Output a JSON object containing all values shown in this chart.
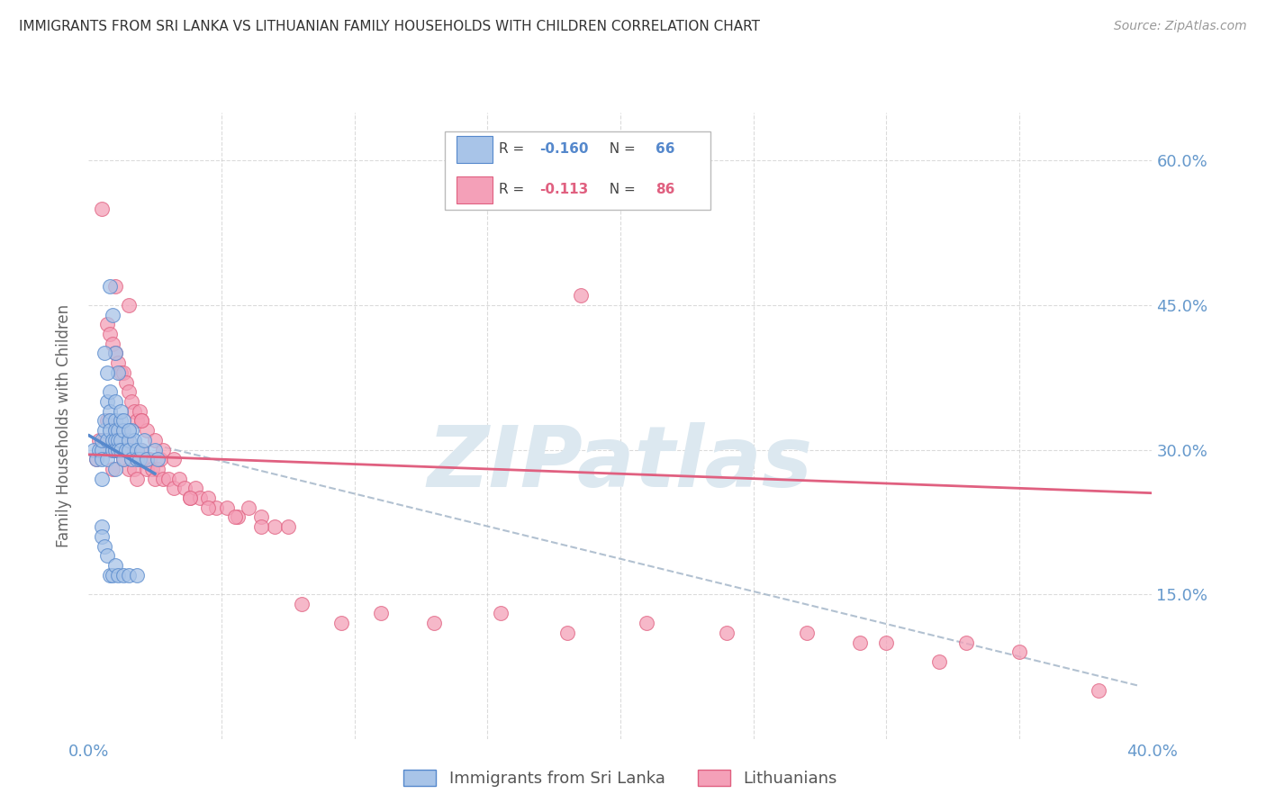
{
  "title": "IMMIGRANTS FROM SRI LANKA VS LITHUANIAN FAMILY HOUSEHOLDS WITH CHILDREN CORRELATION CHART",
  "source": "Source: ZipAtlas.com",
  "ylabel": "Family Households with Children",
  "ytick_labels": [
    "60.0%",
    "45.0%",
    "30.0%",
    "15.0%"
  ],
  "ytick_values": [
    0.6,
    0.45,
    0.3,
    0.15
  ],
  "xlim": [
    0.0,
    0.4
  ],
  "ylim": [
    0.0,
    0.65
  ],
  "legend_blue_R": "-0.160",
  "legend_blue_N": "66",
  "legend_pink_R": "-0.113",
  "legend_pink_N": "86",
  "label_sri_lanka": "Immigrants from Sri Lanka",
  "label_lithuanians": "Lithuanians",
  "blue_fill": "#a8c4e8",
  "blue_edge": "#5588cc",
  "pink_fill": "#f4a0b8",
  "pink_edge": "#e06080",
  "blue_line_color": "#5588cc",
  "pink_line_color": "#e06080",
  "dashed_line_color": "#aabbcc",
  "background_color": "#ffffff",
  "grid_color": "#cccccc",
  "title_color": "#333333",
  "axis_label_color": "#6699cc",
  "watermark_color": "#dce8f0",
  "blue_scatter_x": [
    0.002,
    0.003,
    0.004,
    0.005,
    0.005,
    0.005,
    0.005,
    0.006,
    0.006,
    0.007,
    0.007,
    0.007,
    0.008,
    0.008,
    0.008,
    0.009,
    0.009,
    0.01,
    0.01,
    0.01,
    0.01,
    0.01,
    0.011,
    0.011,
    0.011,
    0.012,
    0.012,
    0.012,
    0.013,
    0.013,
    0.014,
    0.015,
    0.015,
    0.016,
    0.016,
    0.017,
    0.018,
    0.018,
    0.019,
    0.02,
    0.021,
    0.022,
    0.025,
    0.026,
    0.008,
    0.009,
    0.01,
    0.011,
    0.006,
    0.007,
    0.008,
    0.01,
    0.012,
    0.013,
    0.015,
    0.005,
    0.005,
    0.006,
    0.007,
    0.008,
    0.009,
    0.01,
    0.011,
    0.013,
    0.015,
    0.018
  ],
  "blue_scatter_y": [
    0.3,
    0.29,
    0.3,
    0.3,
    0.27,
    0.31,
    0.29,
    0.32,
    0.33,
    0.35,
    0.31,
    0.29,
    0.34,
    0.33,
    0.32,
    0.31,
    0.3,
    0.33,
    0.32,
    0.31,
    0.28,
    0.3,
    0.32,
    0.31,
    0.3,
    0.31,
    0.33,
    0.3,
    0.32,
    0.29,
    0.3,
    0.31,
    0.3,
    0.32,
    0.29,
    0.31,
    0.3,
    0.29,
    0.29,
    0.3,
    0.31,
    0.29,
    0.3,
    0.29,
    0.47,
    0.44,
    0.4,
    0.38,
    0.4,
    0.38,
    0.36,
    0.35,
    0.34,
    0.33,
    0.32,
    0.22,
    0.21,
    0.2,
    0.19,
    0.17,
    0.17,
    0.18,
    0.17,
    0.17,
    0.17,
    0.17
  ],
  "pink_scatter_x": [
    0.003,
    0.004,
    0.005,
    0.006,
    0.007,
    0.008,
    0.009,
    0.01,
    0.01,
    0.011,
    0.012,
    0.012,
    0.013,
    0.014,
    0.015,
    0.015,
    0.016,
    0.017,
    0.018,
    0.019,
    0.02,
    0.021,
    0.022,
    0.023,
    0.024,
    0.025,
    0.026,
    0.027,
    0.028,
    0.03,
    0.032,
    0.034,
    0.036,
    0.038,
    0.04,
    0.042,
    0.045,
    0.048,
    0.052,
    0.056,
    0.06,
    0.065,
    0.07,
    0.075,
    0.007,
    0.008,
    0.009,
    0.01,
    0.011,
    0.012,
    0.013,
    0.014,
    0.015,
    0.016,
    0.017,
    0.018,
    0.019,
    0.02,
    0.022,
    0.025,
    0.028,
    0.032,
    0.038,
    0.045,
    0.055,
    0.065,
    0.08,
    0.095,
    0.11,
    0.13,
    0.155,
    0.18,
    0.21,
    0.24,
    0.27,
    0.3,
    0.33,
    0.35,
    0.38,
    0.005,
    0.01,
    0.015,
    0.02,
    0.185,
    0.29,
    0.32
  ],
  "pink_scatter_y": [
    0.29,
    0.31,
    0.3,
    0.31,
    0.33,
    0.3,
    0.28,
    0.32,
    0.3,
    0.31,
    0.3,
    0.32,
    0.29,
    0.31,
    0.28,
    0.3,
    0.29,
    0.28,
    0.27,
    0.29,
    0.3,
    0.29,
    0.28,
    0.29,
    0.28,
    0.27,
    0.28,
    0.29,
    0.27,
    0.27,
    0.26,
    0.27,
    0.26,
    0.25,
    0.26,
    0.25,
    0.25,
    0.24,
    0.24,
    0.23,
    0.24,
    0.23,
    0.22,
    0.22,
    0.43,
    0.42,
    0.41,
    0.4,
    0.39,
    0.38,
    0.38,
    0.37,
    0.36,
    0.35,
    0.34,
    0.33,
    0.34,
    0.33,
    0.32,
    0.31,
    0.3,
    0.29,
    0.25,
    0.24,
    0.23,
    0.22,
    0.14,
    0.12,
    0.13,
    0.12,
    0.13,
    0.11,
    0.12,
    0.11,
    0.11,
    0.1,
    0.1,
    0.09,
    0.05,
    0.55,
    0.47,
    0.45,
    0.33,
    0.46,
    0.1,
    0.08
  ],
  "blue_trend_x": [
    0.0,
    0.025
  ],
  "blue_trend_y": [
    0.315,
    0.275
  ],
  "pink_trend_x": [
    0.0,
    0.4
  ],
  "pink_trend_y": [
    0.295,
    0.255
  ],
  "dashed_trend_x": [
    0.025,
    0.395
  ],
  "dashed_trend_y": [
    0.305,
    0.055
  ]
}
